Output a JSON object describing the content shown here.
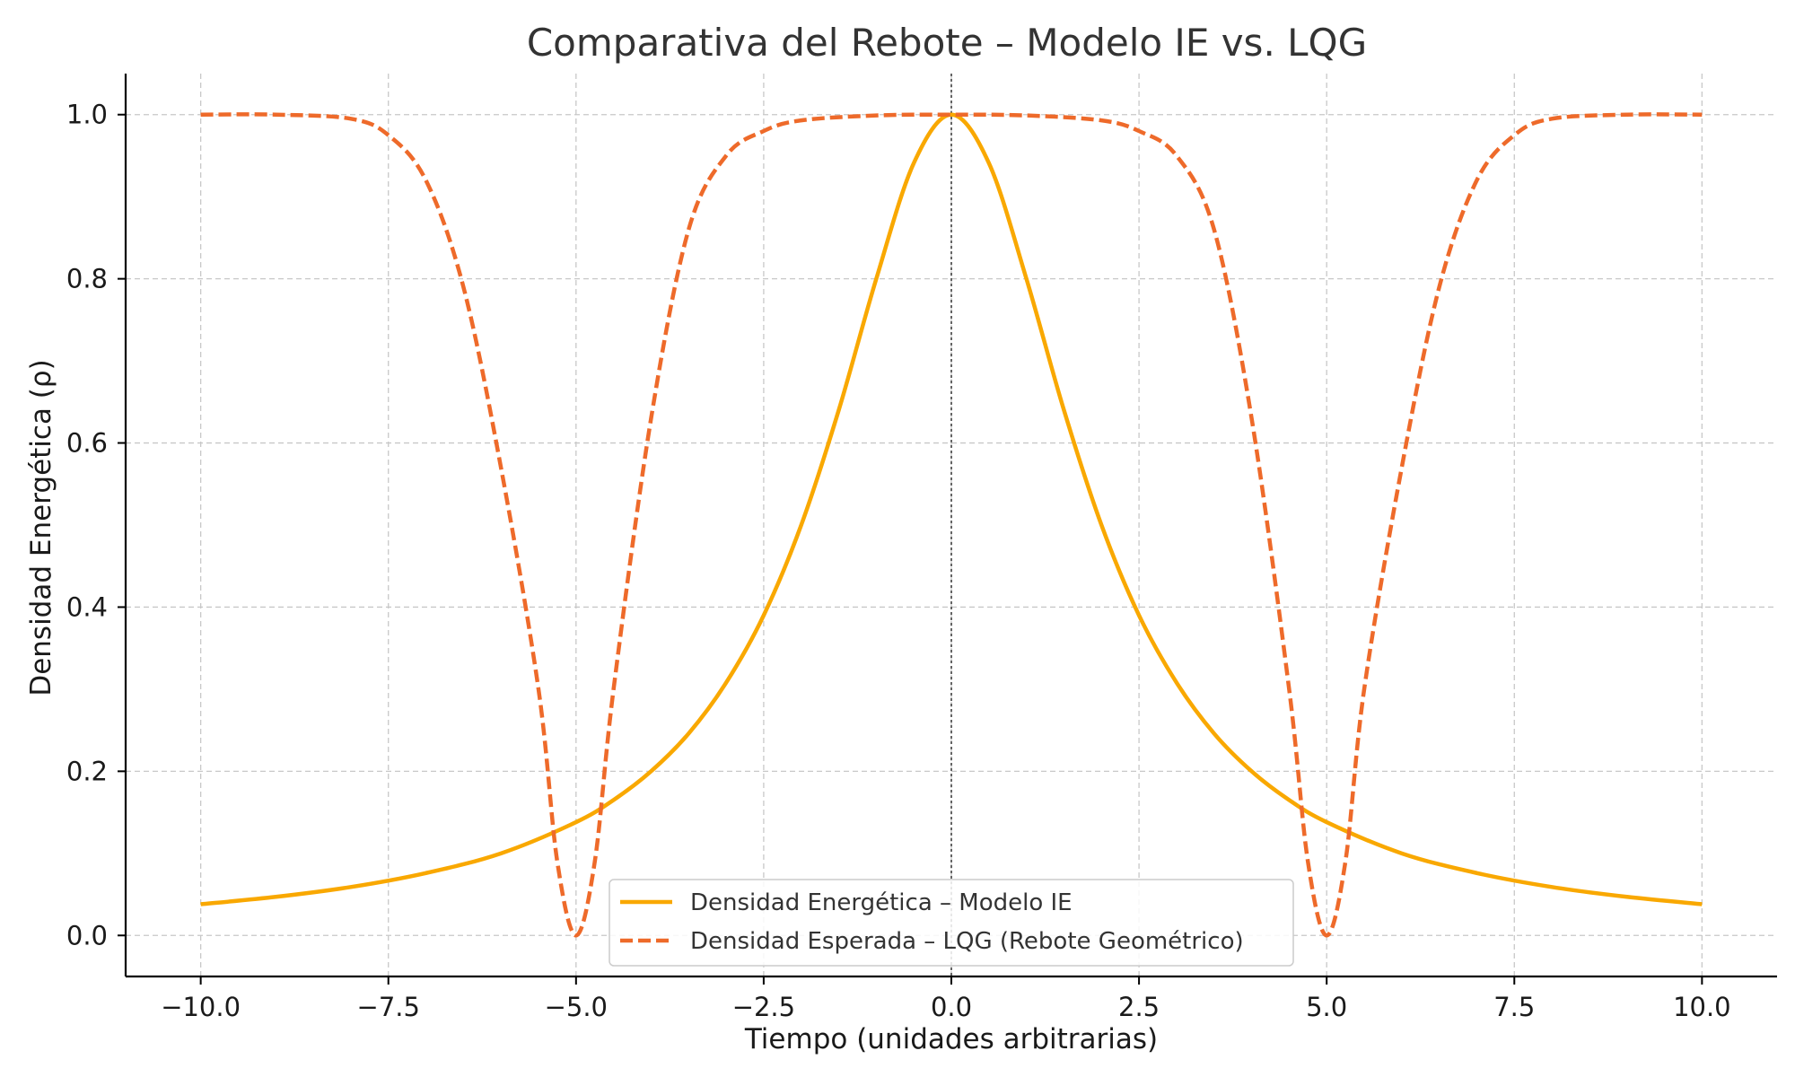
{
  "chart_data": {
    "type": "line",
    "title": "Comparativa del Rebote – Modelo IE vs. LQG",
    "xlabel": "Tiempo (unidades arbitrarias)",
    "ylabel": "Densidad Energética (ρ)",
    "xlim": [
      -11,
      11
    ],
    "ylim": [
      -0.05,
      1.05
    ],
    "xticks": [
      -10,
      -7.5,
      -5,
      -2.5,
      0,
      2.5,
      5,
      7.5,
      10
    ],
    "xtick_labels": [
      "−10.0",
      "−7.5",
      "−5.0",
      "−2.5",
      "0.0",
      "2.5",
      "5.0",
      "7.5",
      "10.0"
    ],
    "yticks": [
      0,
      0.2,
      0.4,
      0.6,
      0.8,
      1.0
    ],
    "ytick_labels": [
      "0.0",
      "0.2",
      "0.4",
      "0.6",
      "0.8",
      "1.0"
    ],
    "grid": true,
    "legend_position": "bottom-center",
    "vertical_reference_line": 0,
    "series": [
      {
        "name": "Densidad Energética – Modelo IE",
        "color": "#f9a800",
        "style": "solid",
        "x": [
          -10,
          -9,
          -8,
          -7,
          -6,
          -5,
          -4.5,
          -4,
          -3.5,
          -3,
          -2.5,
          -2,
          -1.5,
          -1,
          -0.5,
          0,
          0.5,
          1,
          1.5,
          2,
          2.5,
          3,
          3.5,
          4,
          4.5,
          5,
          6,
          7,
          8,
          9,
          10
        ],
        "y": [
          0.038,
          0.047,
          0.059,
          0.076,
          0.1,
          0.138,
          0.165,
          0.2,
          0.246,
          0.308,
          0.39,
          0.5,
          0.64,
          0.8,
          0.941,
          1.0,
          0.941,
          0.8,
          0.64,
          0.5,
          0.39,
          0.308,
          0.246,
          0.2,
          0.165,
          0.138,
          0.1,
          0.076,
          0.059,
          0.047,
          0.038
        ]
      },
      {
        "name": "Densidad Esperada – LQG (Rebote Geométrico)",
        "color": "#ee6a2a",
        "style": "dashed",
        "x": [
          -10,
          -9,
          -8,
          -7.5,
          -7,
          -6.5,
          -6,
          -5.5,
          -5.25,
          -5,
          -4.75,
          -4.5,
          -4,
          -3.5,
          -3,
          -2.5,
          -2,
          -1,
          0,
          1,
          2,
          2.5,
          3,
          3.5,
          4,
          4.5,
          4.75,
          5,
          5.25,
          5.5,
          6,
          6.5,
          7,
          7.5,
          8,
          9,
          10
        ],
        "y": [
          1.0,
          1.0,
          0.995,
          0.975,
          0.92,
          0.79,
          0.57,
          0.3,
          0.09,
          0.0,
          0.09,
          0.3,
          0.63,
          0.86,
          0.95,
          0.98,
          0.993,
          0.999,
          1.0,
          0.999,
          0.993,
          0.98,
          0.95,
          0.86,
          0.63,
          0.3,
          0.09,
          0.0,
          0.09,
          0.3,
          0.57,
          0.79,
          0.92,
          0.975,
          0.995,
          1.0,
          1.0
        ]
      }
    ]
  }
}
